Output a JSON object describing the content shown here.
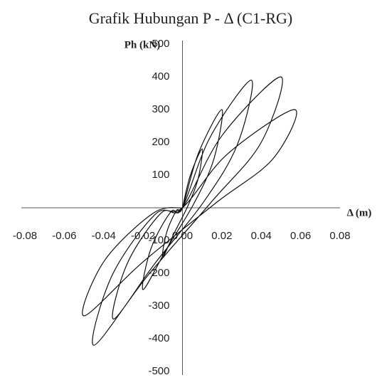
{
  "chart_data": {
    "type": "line",
    "title": "Grafik Hubungan P - Δ (C1-RG)",
    "x_label": "Δ (m)",
    "y_label": "Ph (kN)",
    "xlim": [
      -0.08,
      0.08
    ],
    "ylim": [
      -500,
      500
    ],
    "xticks": [
      -0.08,
      -0.06,
      -0.04,
      -0.02,
      {
        "value": 0,
        "label": "0.00"
      },
      0.02,
      0.04,
      0.06,
      0.08
    ],
    "yticks": [
      500,
      400,
      300,
      200,
      100,
      -100,
      -200,
      -300,
      -400,
      -500
    ],
    "color": "#111111",
    "x": [
      0,
      0.004,
      0.01,
      0.008,
      0.003,
      -0.004,
      -0.01,
      -0.008,
      -0.003,
      0,
      0.008,
      0.02,
      0.016,
      0.006,
      -0.008,
      -0.02,
      -0.016,
      -0.006,
      0,
      0.014,
      0.035,
      0.028,
      0.011,
      -0.014,
      -0.035,
      -0.028,
      -0.011,
      0,
      0.02,
      0.05,
      0.04,
      0.015,
      -0.018,
      -0.045,
      -0.036,
      -0.014,
      0,
      0.023,
      0.057,
      0.046,
      0.017,
      -0.02,
      -0.05,
      -0.04,
      -0.015,
      0
    ],
    "y": [
      0,
      99,
      180,
      90,
      9,
      -75,
      -150,
      -75,
      -8,
      0,
      165,
      300,
      150,
      15,
      -125,
      -250,
      -125,
      -13,
      0,
      215,
      390,
      195,
      20,
      -170,
      -340,
      -170,
      -17,
      0,
      220,
      400,
      200,
      20,
      -210,
      -420,
      -210,
      -21,
      0,
      165,
      300,
      150,
      15,
      -165,
      -330,
      -165,
      -17,
      0
    ]
  }
}
